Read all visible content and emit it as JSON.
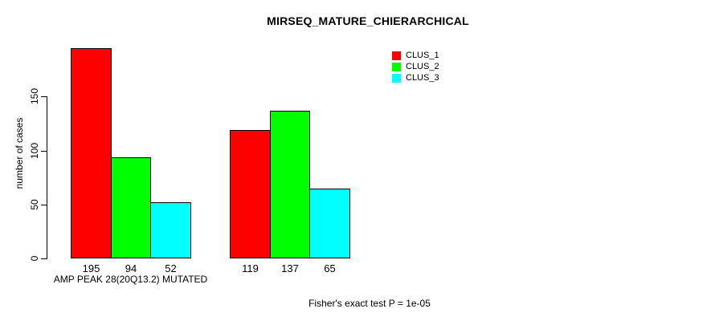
{
  "chart_data": {
    "type": "bar",
    "title": "MIRSEQ_MATURE_CHIERARCHICAL",
    "ylabel": "number of cases",
    "xlabel": "",
    "groups": [
      "AMP PEAK 28(20Q13.2) MUTATED",
      ""
    ],
    "series": [
      {
        "name": "CLUS_1",
        "color": "#ff0000",
        "values": [
          195,
          119
        ]
      },
      {
        "name": "CLUS_2",
        "color": "#00ff00",
        "values": [
          94,
          137
        ]
      },
      {
        "name": "CLUS_3",
        "color": "#00ffff",
        "values": [
          52,
          65
        ]
      }
    ],
    "yticks": [
      0,
      50,
      100,
      150
    ],
    "ylim": [
      0,
      200
    ],
    "grid": false,
    "bar_borders": true,
    "bar_value_labels_shown": true,
    "legend_position": "top-right-inside",
    "annotation": "Fisher's exact test P = 1e-05",
    "axis_color": "#000000",
    "background_color": "#ffffff",
    "text_color": "#000000"
  }
}
